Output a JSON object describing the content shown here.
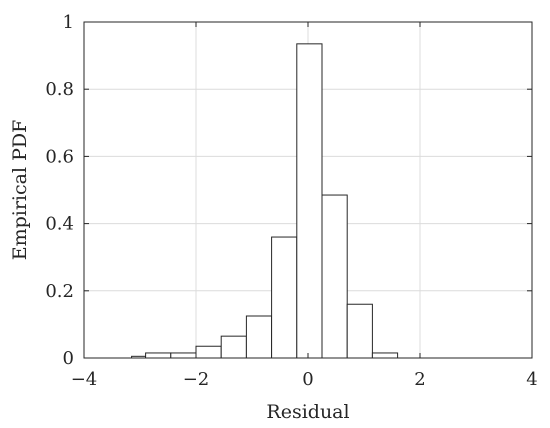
{
  "chart_data": {
    "type": "bar",
    "xlabel": "Residual",
    "ylabel": "Empirical PDF",
    "xlim": [
      -4,
      4
    ],
    "ylim": [
      0,
      1
    ],
    "xticks": [
      -4,
      -2,
      0,
      2,
      4
    ],
    "xtick_labels": [
      "−4",
      "−2",
      "0",
      "2",
      "4"
    ],
    "yticks": [
      0,
      0.2,
      0.4,
      0.6,
      0.8,
      1
    ],
    "ytick_labels": [
      "0",
      "0.2",
      "0.4",
      "0.6",
      "0.8",
      "1"
    ],
    "grid": true,
    "bin_edges": [
      -3.6,
      -3.15,
      -2.9,
      -2.45,
      -2.0,
      -1.55,
      -1.1,
      -0.65,
      -0.2,
      0.25,
      0.7,
      1.15,
      1.6,
      2.05,
      2.5,
      2.95,
      3.4,
      3.85
    ],
    "values": [
      0.0,
      0.005,
      0.015,
      0.015,
      0.035,
      0.065,
      0.125,
      0.36,
      0.935,
      0.485,
      0.16,
      0.015,
      0.0,
      0.0,
      0.0,
      0.0,
      0.0
    ],
    "colors": {
      "bar_fill": "#ffffff",
      "bar_edge": "#262626",
      "grid": "#dcdcdc",
      "axis": "#262626"
    }
  }
}
